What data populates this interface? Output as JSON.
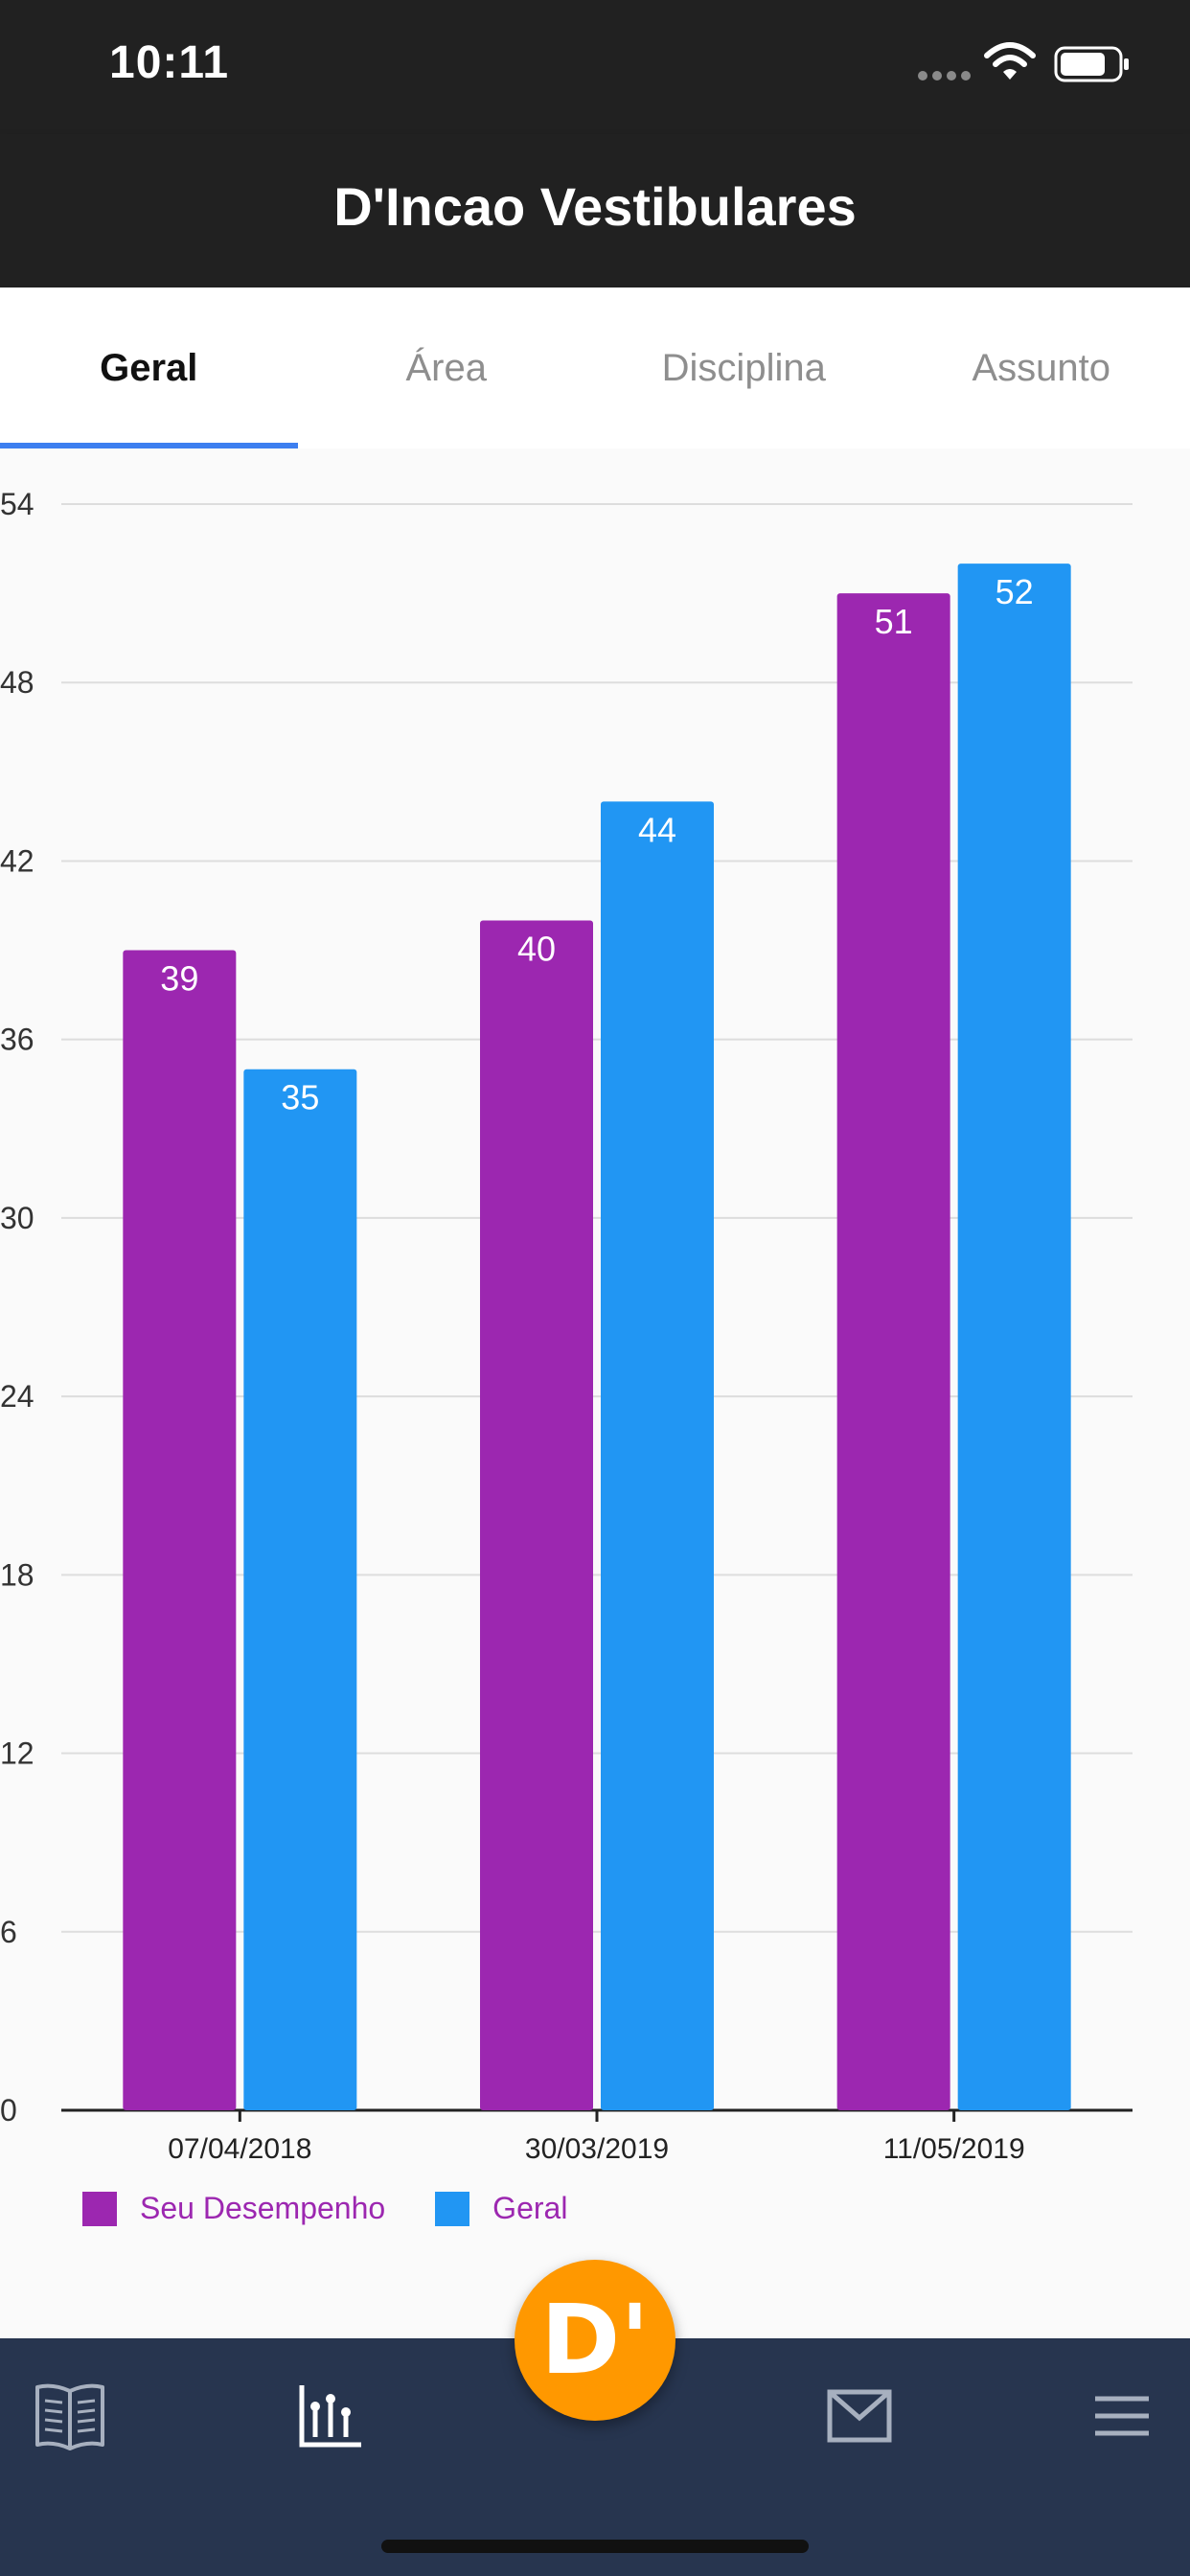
{
  "status_bar": {
    "time": "10:11"
  },
  "app_bar": {
    "title": "D'Incao Vestibulares"
  },
  "tabs": [
    {
      "label": "Geral",
      "active": true
    },
    {
      "label": "Área",
      "active": false
    },
    {
      "label": "Disciplina",
      "active": false
    },
    {
      "label": "Assunto",
      "active": false
    }
  ],
  "chart_data": {
    "type": "bar",
    "categories": [
      "07/04/2018",
      "30/03/2019",
      "11/05/2019"
    ],
    "series": [
      {
        "name": "Seu Desempenho",
        "color": "#9c27b0",
        "values": [
          39,
          40,
          51
        ]
      },
      {
        "name": "Geral",
        "color": "#2196f3",
        "values": [
          35,
          44,
          52
        ]
      }
    ],
    "ylim": [
      0,
      54
    ],
    "yticks": [
      0,
      6,
      12,
      18,
      24,
      30,
      36,
      42,
      48,
      54
    ],
    "grid": true,
    "legend": "bottom-left",
    "data_labels": true
  },
  "fab": {
    "letter": "D'",
    "color": "#ff9800"
  },
  "bottom_nav": {
    "items": [
      {
        "icon": "book-icon"
      },
      {
        "icon": "chart-icon",
        "active": true
      },
      {
        "icon": "mail-icon"
      },
      {
        "icon": "menu-icon"
      }
    ]
  }
}
